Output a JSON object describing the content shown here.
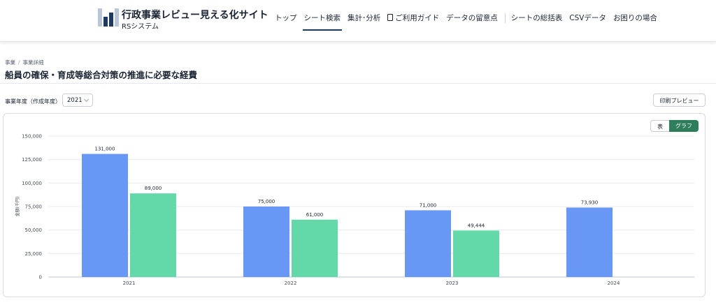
{
  "header": {
    "site_title": "行政事業レビュー見える化サイト",
    "site_subtitle": "RSシステム",
    "nav": [
      "トップ",
      "シート検索",
      "集計･分析",
      "ご利用ガイド",
      "データの留意点",
      "シートの総括表",
      "CSVデータ",
      "お困りの場合"
    ],
    "active_nav": "シート検索"
  },
  "breadcrumb": [
    "事業",
    "事業詳細"
  ],
  "page_title": "船員の確保・育成等総合対策の推進に必要な経費",
  "filters": {
    "year_label": "事業年度（作成年度）",
    "year_value": "2021"
  },
  "print_button": "印刷プレビュー",
  "view_toggle": {
    "table": "表",
    "graph": "グラフ",
    "active": "graph"
  },
  "colors": {
    "series1": "#6897f5",
    "series2": "#63d8a9",
    "accent": "#2e7d5b",
    "nav_active": "#1d3b62"
  },
  "chart_data": {
    "type": "bar",
    "categories": [
      "2021",
      "2022",
      "2023",
      "2024"
    ],
    "series": [
      {
        "values": [
          131000,
          75000,
          71000,
          73930
        ],
        "labels": [
          "131,000",
          "75,000",
          "71,000",
          "73,930"
        ]
      },
      {
        "values": [
          89000,
          61000,
          49444,
          null
        ],
        "labels": [
          "89,000",
          "61,000",
          "49,444",
          ""
        ]
      }
    ],
    "ylabel": "金額(千円)",
    "ylim": [
      0,
      150000
    ],
    "yticks": [
      "0",
      "25,000",
      "50,000",
      "75,000",
      "100,000",
      "125,000",
      "150,000"
    ],
    "grid": true
  }
}
